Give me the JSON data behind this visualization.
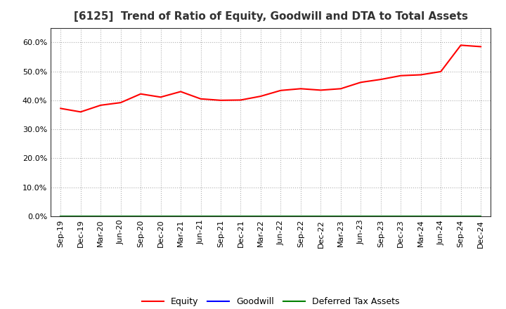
{
  "title": "[6125]  Trend of Ratio of Equity, Goodwill and DTA to Total Assets",
  "x_labels": [
    "Sep-19",
    "Dec-19",
    "Mar-20",
    "Jun-20",
    "Sep-20",
    "Dec-20",
    "Mar-21",
    "Jun-21",
    "Sep-21",
    "Dec-21",
    "Mar-22",
    "Jun-22",
    "Sep-22",
    "Dec-22",
    "Mar-23",
    "Jun-23",
    "Sep-23",
    "Dec-23",
    "Mar-24",
    "Jun-24",
    "Sep-24",
    "Dec-24"
  ],
  "equity": [
    0.372,
    0.36,
    0.383,
    0.392,
    0.422,
    0.411,
    0.43,
    0.405,
    0.4,
    0.401,
    0.414,
    0.434,
    0.44,
    0.435,
    0.44,
    0.462,
    0.472,
    0.485,
    0.488,
    0.499,
    0.59,
    0.585
  ],
  "goodwill": [
    0.0,
    0.0,
    0.0,
    0.0,
    0.0,
    0.0,
    0.0,
    0.0,
    0.0,
    0.0,
    0.0,
    0.0,
    0.0,
    0.0,
    0.0,
    0.0,
    0.0,
    0.0,
    0.0,
    0.0,
    0.0,
    0.0
  ],
  "dta": [
    0.0,
    0.0,
    0.0,
    0.0,
    0.0,
    0.0,
    0.0,
    0.0,
    0.0,
    0.0,
    0.0,
    0.0,
    0.0,
    0.0,
    0.0,
    0.0,
    0.0,
    0.0,
    0.0,
    0.0,
    0.0,
    0.0
  ],
  "equity_color": "#ff0000",
  "goodwill_color": "#0000ff",
  "dta_color": "#008000",
  "ylim": [
    0.0,
    0.65
  ],
  "yticks": [
    0.0,
    0.1,
    0.2,
    0.3,
    0.4,
    0.5,
    0.6
  ],
  "background_color": "#ffffff",
  "grid_color": "#b0b0b0",
  "title_fontsize": 11,
  "tick_fontsize": 8,
  "legend_labels": [
    "Equity",
    "Goodwill",
    "Deferred Tax Assets"
  ]
}
